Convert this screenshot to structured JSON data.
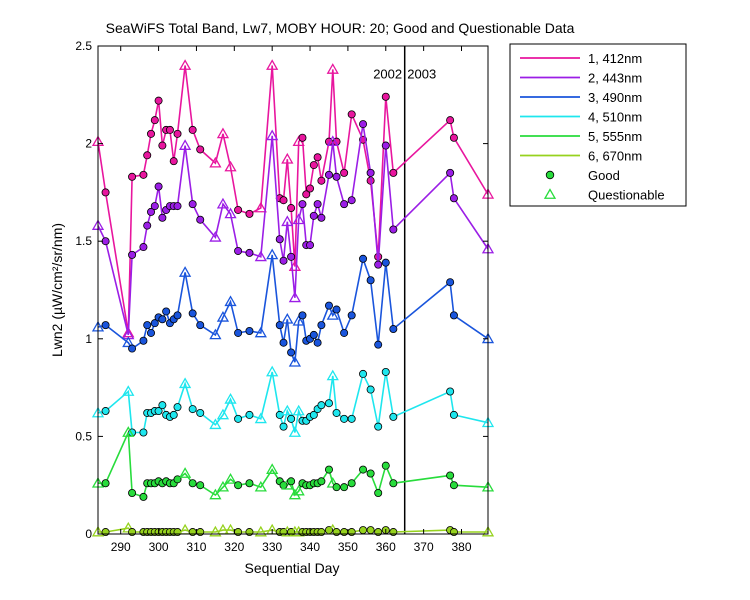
{
  "chart_data": {
    "type": "line",
    "title": "SeaWiFS Total Band, Lw7, MOBY HOUR: 20;  Good and Questionable Data",
    "xlabel": "Sequential Day",
    "ylabel": "Lwn2 (µW/cm²/sr/nm)",
    "xlim": [
      284,
      387
    ],
    "ylim": [
      0,
      2.5
    ],
    "xticks": [
      290,
      300,
      310,
      320,
      330,
      340,
      350,
      360,
      370,
      380
    ],
    "yticks": [
      0,
      0.5,
      1,
      1.5,
      2,
      2.5
    ],
    "ytick_labels": [
      "0",
      "0.5",
      "1",
      "1.5",
      "2",
      "2.5"
    ],
    "grid": false,
    "legend_position": "outside-right",
    "annotations": [
      {
        "text": "2002",
        "x": 360.5,
        "y": 2.36
      },
      {
        "text": "2003",
        "x": 369.5,
        "y": 2.36
      }
    ],
    "vline_x": 365,
    "x": [
      284,
      286,
      292,
      293,
      296,
      297,
      298,
      299,
      300,
      301,
      302,
      303,
      304,
      305,
      307,
      309,
      311,
      315,
      317,
      319,
      321,
      324,
      327,
      330,
      332,
      333,
      334,
      335,
      336,
      337,
      338,
      339,
      340,
      341,
      342,
      343,
      345,
      346,
      347,
      349,
      351,
      354,
      356,
      358,
      360,
      362,
      377,
      378,
      387
    ],
    "quality": [
      "Q",
      "G",
      "Q",
      "G",
      "G",
      "G",
      "G",
      "G",
      "G",
      "G",
      "G",
      "G",
      "G",
      "G",
      "Q",
      "G",
      "G",
      "Q",
      "Q",
      "Q",
      "G",
      "G",
      "Q",
      "Q",
      "G",
      "G",
      "Q",
      "G",
      "Q",
      "Q",
      "G",
      "G",
      "G",
      "G",
      "G",
      "G",
      "G",
      "Q",
      "G",
      "G",
      "G",
      "G",
      "G",
      "G",
      "G",
      "G",
      "G",
      "G",
      "Q"
    ],
    "series": [
      {
        "name": "1, 412nm",
        "color": "#e8169e",
        "values": [
          2.01,
          1.75,
          1.03,
          1.83,
          1.84,
          1.94,
          2.05,
          2.12,
          2.22,
          1.99,
          2.07,
          2.07,
          1.91,
          2.05,
          2.4,
          2.07,
          1.97,
          1.9,
          2.05,
          1.88,
          1.66,
          1.64,
          1.67,
          2.4,
          1.72,
          1.71,
          1.92,
          1.67,
          1.37,
          2.01,
          2.03,
          1.74,
          1.77,
          1.89,
          1.93,
          1.81,
          2.01,
          2.38,
          2.01,
          1.85,
          2.15,
          2.02,
          1.81,
          1.42,
          2.24,
          1.85,
          2.12,
          2.03,
          1.74
        ]
      },
      {
        "name": "2, 443nm",
        "color": "#9b1ee6",
        "values": [
          1.58,
          1.5,
          1.02,
          1.43,
          1.47,
          1.58,
          1.65,
          1.68,
          1.78,
          1.62,
          1.66,
          1.68,
          1.68,
          1.68,
          1.99,
          1.69,
          1.61,
          1.52,
          1.69,
          1.64,
          1.45,
          1.44,
          1.42,
          2.04,
          1.51,
          1.4,
          1.6,
          1.42,
          1.21,
          1.61,
          1.69,
          1.48,
          1.48,
          1.63,
          1.69,
          1.62,
          1.84,
          2.01,
          1.83,
          1.69,
          1.71,
          2.1,
          1.85,
          1.38,
          1.99,
          1.56,
          1.85,
          1.72,
          1.46
        ]
      },
      {
        "name": "3, 490nm",
        "color": "#1a55dc",
        "values": [
          1.06,
          1.07,
          0.98,
          0.95,
          0.99,
          1.07,
          1.03,
          1.08,
          1.11,
          1.1,
          1.14,
          1.08,
          1.1,
          1.12,
          1.34,
          1.13,
          1.07,
          1.02,
          1.11,
          1.19,
          1.03,
          1.04,
          1.03,
          1.43,
          1.07,
          0.98,
          1.1,
          0.93,
          0.88,
          1.09,
          1.12,
          0.99,
          1.0,
          1.02,
          0.98,
          1.07,
          1.17,
          1.12,
          1.15,
          1.03,
          1.12,
          1.41,
          1.3,
          0.97,
          1.39,
          1.05,
          1.29,
          1.12,
          1.0
        ]
      },
      {
        "name": "4, 510nm",
        "color": "#1ee6ee",
        "values": [
          0.62,
          0.63,
          0.73,
          0.52,
          0.52,
          0.62,
          0.62,
          0.63,
          0.63,
          0.66,
          0.61,
          0.6,
          0.61,
          0.65,
          0.77,
          0.64,
          0.62,
          0.56,
          0.61,
          0.69,
          0.59,
          0.61,
          0.59,
          0.83,
          0.61,
          0.55,
          0.63,
          0.59,
          0.52,
          0.63,
          0.58,
          0.58,
          0.6,
          0.61,
          0.64,
          0.66,
          0.67,
          0.81,
          0.62,
          0.59,
          0.59,
          0.82,
          0.74,
          0.55,
          0.83,
          0.6,
          0.73,
          0.61,
          0.57
        ]
      },
      {
        "name": "5, 555nm",
        "color": "#28dc3c",
        "values": [
          0.26,
          0.26,
          0.52,
          0.21,
          0.19,
          0.26,
          0.26,
          0.26,
          0.27,
          0.26,
          0.27,
          0.26,
          0.26,
          0.28,
          0.31,
          0.26,
          0.25,
          0.2,
          0.24,
          0.28,
          0.25,
          0.26,
          0.24,
          0.33,
          0.27,
          0.25,
          0.25,
          0.27,
          0.2,
          0.22,
          0.26,
          0.25,
          0.25,
          0.26,
          0.26,
          0.27,
          0.33,
          0.26,
          0.24,
          0.24,
          0.26,
          0.33,
          0.31,
          0.21,
          0.35,
          0.26,
          0.3,
          0.25,
          0.24
        ]
      },
      {
        "name": "6, 670nm",
        "color": "#96d21e",
        "values": [
          0.01,
          0.01,
          0.03,
          0.01,
          0.01,
          0.01,
          0.01,
          0.01,
          0.01,
          0.01,
          0.01,
          0.01,
          0.01,
          0.01,
          0.02,
          0.01,
          0.01,
          0.01,
          0.02,
          0.02,
          0.01,
          0.01,
          0.01,
          0.02,
          0.01,
          0.01,
          0.01,
          0.01,
          0.01,
          0.01,
          0.01,
          0.01,
          0.01,
          0.01,
          0.01,
          0.01,
          0.02,
          0.02,
          0.01,
          0.01,
          0.01,
          0.02,
          0.02,
          0.01,
          0.02,
          0.01,
          0.02,
          0.01,
          0.01
        ]
      }
    ],
    "legend": {
      "entries": [
        "1, 412nm",
        "2, 443nm",
        "3, 490nm",
        "4, 510nm",
        "5, 555nm",
        "6, 670nm"
      ],
      "good_label": "Good",
      "questionable_label": "Questionable",
      "good_marker_color": "#28dc3c",
      "questionable_marker_color": "#28dc3c"
    }
  }
}
